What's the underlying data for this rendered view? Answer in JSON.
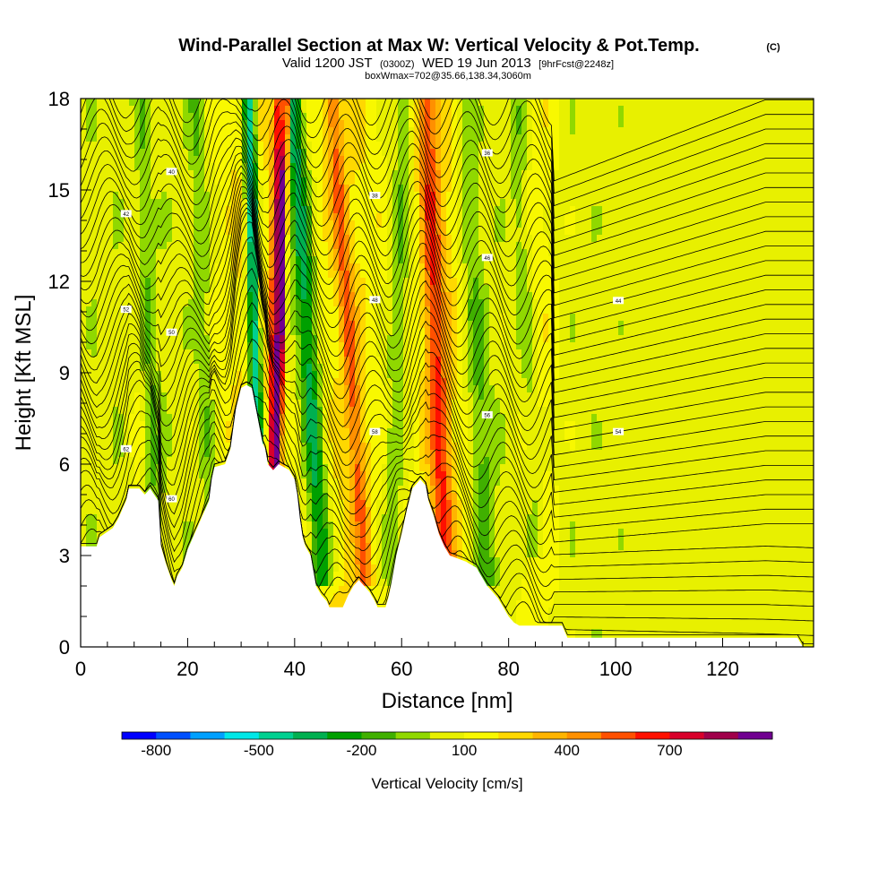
{
  "chart_data": {
    "type": "heatmap",
    "title": "Wind-Parallel Section at Max W: Vertical Velocity & Pot.Temp.",
    "title_mark": "(C)",
    "subtitle_parts": {
      "valid": "Valid 1200 JST",
      "utc": "(0300Z)",
      "date": "WED 19 Jun 2013",
      "fcst": "[9hrFcst@2248z]"
    },
    "subtitle2": "boxWmax=702@35.66,138.34,3060m",
    "xlabel": "Distance [nm]",
    "ylabel": "Height [Kft MSL]",
    "xlim": [
      0,
      137
    ],
    "ylim": [
      0,
      18
    ],
    "xticks": [
      0,
      20,
      40,
      60,
      80,
      100,
      120
    ],
    "xticks_minor_step": 5,
    "yticks": [
      0,
      3,
      6,
      9,
      12,
      15,
      18
    ],
    "yticks_minor_step": 1,
    "terrain_profile": [
      [
        0,
        3.3
      ],
      [
        3,
        3.3
      ],
      [
        3.5,
        3.6
      ],
      [
        6,
        3.9
      ],
      [
        7,
        4.2
      ],
      [
        8.5,
        4.8
      ],
      [
        9,
        5.2
      ],
      [
        11,
        5.2
      ],
      [
        12,
        5.0
      ],
      [
        13,
        5.2
      ],
      [
        14.5,
        4.8
      ],
      [
        15,
        3.3
      ],
      [
        16,
        2.7
      ],
      [
        17,
        2.2
      ],
      [
        17.5,
        2.0
      ],
      [
        18,
        2.3
      ],
      [
        19,
        2.6
      ],
      [
        20,
        3.2
      ],
      [
        21,
        3.6
      ],
      [
        22,
        4.0
      ],
      [
        24,
        4.8
      ],
      [
        24.5,
        5.5
      ],
      [
        25,
        5.9
      ],
      [
        27,
        6.0
      ],
      [
        28,
        6.5
      ],
      [
        29,
        7.8
      ],
      [
        30,
        8.5
      ],
      [
        31,
        8.6
      ],
      [
        32,
        8.5
      ],
      [
        33,
        7.6
      ],
      [
        34,
        6.7
      ],
      [
        34.5,
        6.5
      ],
      [
        35,
        6.0
      ],
      [
        36,
        5.8
      ],
      [
        37,
        6.0
      ],
      [
        38,
        5.9
      ],
      [
        39,
        5.8
      ],
      [
        40,
        5.5
      ],
      [
        40.5,
        5.0
      ],
      [
        41,
        4.2
      ],
      [
        41.5,
        3.6
      ],
      [
        42,
        3.3
      ],
      [
        43,
        3.0
      ],
      [
        43.5,
        2.5
      ],
      [
        44,
        2.0
      ],
      [
        45,
        1.7
      ],
      [
        46,
        1.5
      ],
      [
        46.5,
        1.3
      ],
      [
        49,
        1.3
      ],
      [
        49.5,
        1.5
      ],
      [
        50,
        1.7
      ],
      [
        51,
        2.0
      ],
      [
        52,
        2.2
      ],
      [
        53,
        2.0
      ],
      [
        54,
        1.8
      ],
      [
        55,
        1.5
      ],
      [
        55.5,
        1.3
      ],
      [
        57,
        1.3
      ],
      [
        57.5,
        1.6
      ],
      [
        58,
        2.0
      ],
      [
        59,
        3.0
      ],
      [
        60,
        3.7
      ],
      [
        61,
        4.5
      ],
      [
        62,
        5.2
      ],
      [
        63.5,
        5.5
      ],
      [
        64.5,
        5.3
      ],
      [
        65,
        4.8
      ],
      [
        66,
        4.3
      ],
      [
        67,
        3.7
      ],
      [
        68,
        3.3
      ],
      [
        69,
        3.0
      ],
      [
        72,
        2.8
      ],
      [
        74,
        2.6
      ],
      [
        75,
        2.3
      ],
      [
        76,
        2.0
      ],
      [
        77,
        1.8
      ],
      [
        78,
        1.6
      ],
      [
        79,
        1.3
      ],
      [
        80,
        1.0
      ],
      [
        81,
        0.8
      ],
      [
        82,
        0.7
      ],
      [
        90,
        0.7
      ],
      [
        91,
        0.3
      ],
      [
        134,
        0.3
      ],
      [
        135,
        0
      ],
      [
        137,
        0
      ]
    ],
    "updraft_bands": [
      {
        "x0": 9,
        "x1": 12,
        "w": 80
      },
      {
        "x0": 26,
        "x1": 37,
        "w": 280
      },
      {
        "x0": 43,
        "x1": 57,
        "w": 250
      },
      {
        "x0": 63,
        "x1": 72,
        "w": 300
      },
      {
        "x0": 82,
        "x1": 89,
        "w": 180
      }
    ],
    "tilted_bands": [
      {
        "xb": 33,
        "xt": 31.5,
        "zb": 6,
        "zt": 18,
        "half": 0.9,
        "w": -700
      },
      {
        "xb": 36,
        "xt": 37.2,
        "zb": 6,
        "zt": 18,
        "half": 0.8,
        "w": 650
      },
      {
        "xb": 36.8,
        "xt": 38.5,
        "zb": 6,
        "zt": 18,
        "half": 0.4,
        "w": 800
      },
      {
        "xb": 45,
        "xt": 39.5,
        "zb": 3,
        "zt": 18,
        "half": 1.4,
        "w": -450
      },
      {
        "xb": 58,
        "xt": 60.5,
        "zb": 3,
        "zt": 18,
        "half": 1.2,
        "w": -180
      },
      {
        "xb": 76,
        "xt": 71.5,
        "zb": 3,
        "zt": 18,
        "half": 1.5,
        "w": -200
      },
      {
        "xb": 85,
        "xt": 81.5,
        "zb": 4,
        "zt": 18,
        "half": 1.2,
        "w": -160
      },
      {
        "xb": 14,
        "xt": 11,
        "zb": 5,
        "zt": 18,
        "half": 1.1,
        "w": -150
      },
      {
        "xb": 24,
        "xt": 21.5,
        "zb": 5,
        "zt": 18,
        "half": 1.0,
        "w": -150
      },
      {
        "xb": 53,
        "xt": 47,
        "zb": 3,
        "zt": 18,
        "half": 1.0,
        "w": 330
      },
      {
        "xb": 68,
        "xt": 64.5,
        "zb": 3,
        "zt": 18,
        "half": 1.3,
        "w": 380
      }
    ],
    "isentrope_levels": 38,
    "isentrope_labels": [
      "62",
      "60",
      "58",
      "56",
      "54",
      "52",
      "50",
      "48",
      "46",
      "44",
      "42",
      "40",
      "38",
      "36"
    ],
    "colorbar": {
      "label": "Vertical Velocity [cm/s]",
      "min": -900,
      "step": 100,
      "colors": [
        "#0000ff",
        "#0050ff",
        "#00a0ff",
        "#00e8e8",
        "#00d090",
        "#00b050",
        "#00a000",
        "#40b000",
        "#90d800",
        "#e8f000",
        "#f8f800",
        "#ffd800",
        "#ffb400",
        "#ff9000",
        "#ff5000",
        "#ff1000",
        "#d8002a",
        "#a0004a",
        "#700090"
      ],
      "tick_values": [
        -800,
        -500,
        -200,
        100,
        400,
        700
      ],
      "tick_labels": [
        "-800",
        "-500",
        "-200",
        "100",
        "400",
        "700"
      ]
    }
  }
}
